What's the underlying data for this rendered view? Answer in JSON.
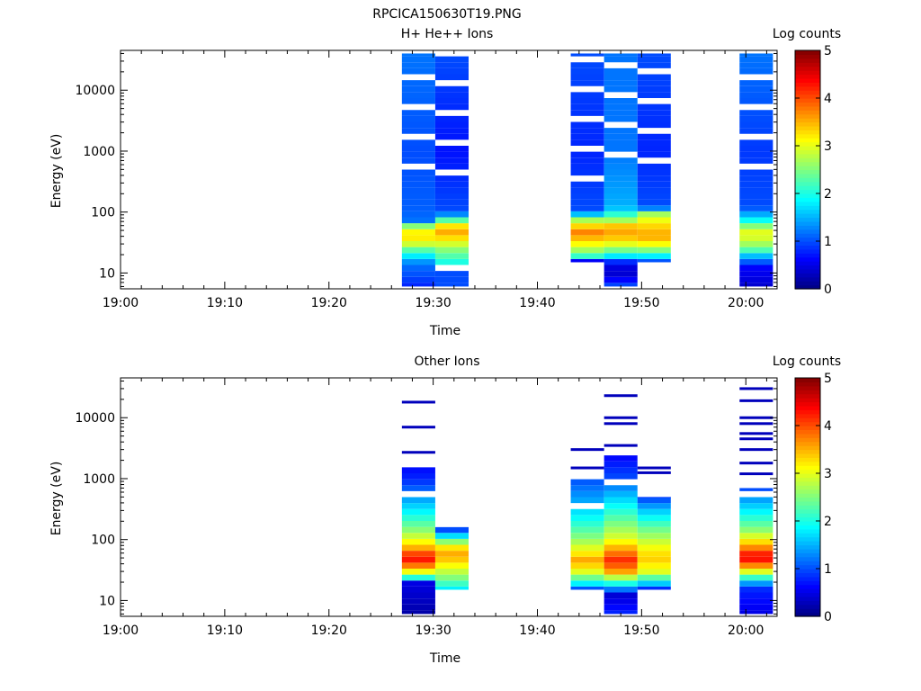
{
  "page_title": "RPCICA150630T19.PNG",
  "colormap": [
    "#00007f",
    "#0000ff",
    "#007fff",
    "#00ffff",
    "#7fff7f",
    "#ffff00",
    "#ff7f00",
    "#ff0000",
    "#7f0000"
  ],
  "chart_data": [
    {
      "type": "heatmap",
      "title": "H+ He++ Ions",
      "xlabel": "Time",
      "ylabel": "Energy (eV)",
      "x_ticks": [
        "19:00",
        "19:10",
        "19:20",
        "19:30",
        "19:40",
        "19:50",
        "20:00"
      ],
      "x_tick_minutes": [
        0,
        10,
        20,
        30,
        40,
        50,
        60
      ],
      "xlim_minutes": [
        0,
        63
      ],
      "y_ticks": [
        "10",
        "100",
        "1000",
        "10000"
      ],
      "y_tick_values": [
        10,
        100,
        1000,
        10000
      ],
      "ylim": [
        5.5,
        45000
      ],
      "y_scale": "log",
      "colorbar": {
        "label": "Log counts",
        "range": [
          0,
          5
        ],
        "ticks": [
          "0",
          "1",
          "2",
          "3",
          "4",
          "5"
        ]
      },
      "columns": [
        {
          "t_start": 27.0,
          "t_end": 30.2,
          "e_min": 6,
          "e_max": 40000,
          "profile": [
            [
              6,
              0.8
            ],
            [
              9,
              1.0
            ],
            [
              14,
              1.2
            ],
            [
              20,
              1.9
            ],
            [
              26,
              2.5
            ],
            [
              30,
              2.9
            ],
            [
              40,
              3.3
            ],
            [
              55,
              3.0
            ],
            [
              70,
              1.2
            ],
            [
              100,
              1.1
            ],
            [
              1000,
              1.0
            ],
            [
              40000,
              1.2
            ]
          ]
        },
        {
          "t_start": 30.2,
          "t_end": 33.4,
          "e_min": 6,
          "e_max": 38000,
          "gap_band": [
            10,
            15
          ],
          "profile": [
            [
              6,
              1.0
            ],
            [
              10,
              1.0
            ],
            [
              15,
              2.0
            ],
            [
              25,
              2.6
            ],
            [
              35,
              3.2
            ],
            [
              50,
              3.6
            ],
            [
              65,
              3.0
            ],
            [
              80,
              1.8
            ],
            [
              100,
              1.0
            ],
            [
              1000,
              0.7
            ],
            [
              38000,
              1.0
            ]
          ]
        },
        {
          "t_start": 43.2,
          "t_end": 46.4,
          "e_min": 15,
          "e_max": 40000,
          "profile": [
            [
              15,
              0.5
            ],
            [
              18,
              2.0
            ],
            [
              25,
              2.8
            ],
            [
              35,
              3.4
            ],
            [
              50,
              3.8
            ],
            [
              65,
              3.0
            ],
            [
              80,
              2.5
            ],
            [
              100,
              1.0
            ],
            [
              1000,
              0.8
            ],
            [
              40000,
              1.0
            ]
          ]
        },
        {
          "t_start": 46.4,
          "t_end": 49.6,
          "e_min": 6,
          "e_max": 40000,
          "profile": [
            [
              6,
              1.0
            ],
            [
              9,
              0.4
            ],
            [
              14,
              0.5
            ],
            [
              20,
              2.0
            ],
            [
              28,
              2.9
            ],
            [
              40,
              3.5
            ],
            [
              55,
              3.6
            ],
            [
              80,
              2.4
            ],
            [
              120,
              1.5
            ],
            [
              1000,
              1.2
            ],
            [
              40000,
              1.2
            ]
          ]
        },
        {
          "t_start": 49.6,
          "t_end": 52.8,
          "e_min": 15,
          "e_max": 40000,
          "profile": [
            [
              15,
              1.0
            ],
            [
              20,
              2.0
            ],
            [
              28,
              3.0
            ],
            [
              40,
              3.6
            ],
            [
              60,
              3.3
            ],
            [
              90,
              2.8
            ],
            [
              120,
              1.0
            ],
            [
              1000,
              0.8
            ],
            [
              40000,
              1.0
            ]
          ]
        },
        {
          "t_start": 59.4,
          "t_end": 62.6,
          "e_min": 6,
          "e_max": 40000,
          "profile": [
            [
              6,
              0.4
            ],
            [
              12,
              0.6
            ],
            [
              18,
              1.4
            ],
            [
              25,
              2.4
            ],
            [
              35,
              2.9
            ],
            [
              50,
              3.0
            ],
            [
              70,
              2.0
            ],
            [
              90,
              1.5
            ],
            [
              120,
              1.0
            ],
            [
              1000,
              0.9
            ],
            [
              40000,
              1.2
            ]
          ]
        }
      ]
    },
    {
      "type": "heatmap",
      "title": "Other Ions",
      "xlabel": "Time",
      "ylabel": "Energy (eV)",
      "x_ticks": [
        "19:00",
        "19:10",
        "19:20",
        "19:30",
        "19:40",
        "19:50",
        "20:00"
      ],
      "x_tick_minutes": [
        0,
        10,
        20,
        30,
        40,
        50,
        60
      ],
      "xlim_minutes": [
        0,
        63
      ],
      "y_ticks": [
        "10",
        "100",
        "1000",
        "10000"
      ],
      "y_tick_values": [
        10,
        100,
        1000,
        10000
      ],
      "ylim": [
        5.5,
        45000
      ],
      "y_scale": "log",
      "colorbar": {
        "label": "Log counts",
        "range": [
          0,
          5
        ],
        "ticks": [
          "0",
          "1",
          "2",
          "3",
          "4",
          "5"
        ]
      },
      "columns": [
        {
          "t_start": 27.0,
          "t_end": 30.2,
          "e_min": 6,
          "e_max": 1800,
          "lines": [
            2700,
            7000,
            18000
          ],
          "profile": [
            [
              6,
              0.2
            ],
            [
              20,
              0.5
            ],
            [
              25,
              2.5
            ],
            [
              35,
              3.6
            ],
            [
              45,
              4.3
            ],
            [
              60,
              4.0
            ],
            [
              80,
              3.3
            ],
            [
              150,
              2.5
            ],
            [
              300,
              1.8
            ],
            [
              600,
              1.2
            ],
            [
              1000,
              0.8
            ],
            [
              1800,
              0.6
            ]
          ]
        },
        {
          "t_start": 30.2,
          "t_end": 33.4,
          "e_min": 15,
          "e_max": 160,
          "profile": [
            [
              15,
              1.8
            ],
            [
              25,
              2.6
            ],
            [
              40,
              3.2
            ],
            [
              55,
              3.6
            ],
            [
              75,
              3.2
            ],
            [
              100,
              2.3
            ],
            [
              130,
              1.2
            ],
            [
              160,
              0.8
            ]
          ]
        },
        {
          "t_start": 43.2,
          "t_end": 46.4,
          "e_min": 15,
          "e_max": 1000,
          "lines": [
            1500,
            3000
          ],
          "profile": [
            [
              15,
              1.0
            ],
            [
              20,
              2.0
            ],
            [
              30,
              3.0
            ],
            [
              45,
              3.6
            ],
            [
              60,
              3.2
            ],
            [
              100,
              2.6
            ],
            [
              200,
              2.0
            ],
            [
              400,
              1.5
            ],
            [
              1000,
              1.0
            ]
          ]
        },
        {
          "t_start": 46.4,
          "t_end": 49.6,
          "e_min": 6,
          "e_max": 2500,
          "lines": [
            3500,
            8000,
            10000,
            23000
          ],
          "profile": [
            [
              6,
              0.8
            ],
            [
              12,
              0.4
            ],
            [
              18,
              1.8
            ],
            [
              30,
              3.6
            ],
            [
              45,
              4.2
            ],
            [
              60,
              3.8
            ],
            [
              100,
              3.0
            ],
            [
              200,
              2.4
            ],
            [
              500,
              1.6
            ],
            [
              1000,
              1.0
            ],
            [
              2500,
              0.6
            ]
          ]
        },
        {
          "t_start": 49.6,
          "t_end": 52.8,
          "e_min": 15,
          "e_max": 500,
          "lines": [
            1250,
            1500
          ],
          "profile": [
            [
              15,
              0.8
            ],
            [
              20,
              1.8
            ],
            [
              30,
              3.0
            ],
            [
              50,
              3.4
            ],
            [
              80,
              3.0
            ],
            [
              150,
              2.4
            ],
            [
              300,
              1.6
            ],
            [
              500,
              0.9
            ]
          ]
        },
        {
          "t_start": 59.4,
          "t_end": 62.6,
          "e_min": 6,
          "e_max": 700,
          "lines": [
            1200,
            1800,
            3000,
            4500,
            5500,
            8000,
            10000,
            19000,
            30000
          ],
          "profile": [
            [
              6,
              0.5
            ],
            [
              15,
              0.8
            ],
            [
              20,
              1.5
            ],
            [
              30,
              3.0
            ],
            [
              45,
              4.3
            ],
            [
              60,
              4.2
            ],
            [
              80,
              3.5
            ],
            [
              150,
              2.5
            ],
            [
              300,
              1.8
            ],
            [
              700,
              1.0
            ]
          ]
        }
      ]
    }
  ]
}
